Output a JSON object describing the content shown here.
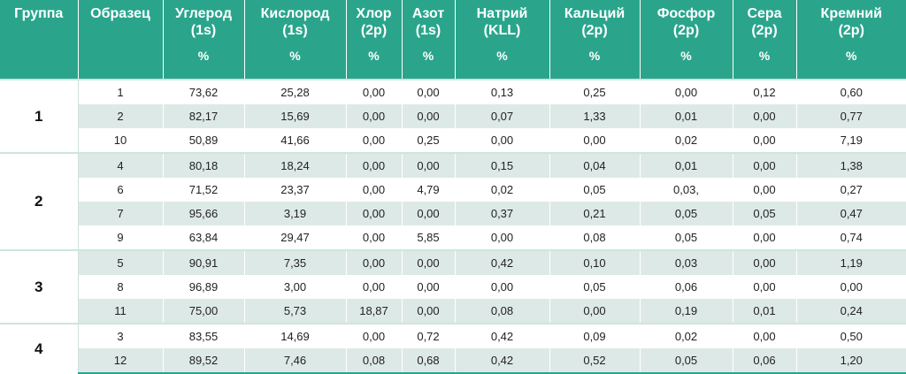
{
  "table": {
    "headers": [
      {
        "line1": "Группа",
        "line2": "",
        "unit": ""
      },
      {
        "line1": "Образец",
        "line2": "",
        "unit": ""
      },
      {
        "line1": "Углерод",
        "line2": "(1s)",
        "unit": "%"
      },
      {
        "line1": "Кислород",
        "line2": "(1s)",
        "unit": "%"
      },
      {
        "line1": "Хлор",
        "line2": "(2p)",
        "unit": "%"
      },
      {
        "line1": "Азот",
        "line2": "(1s)",
        "unit": "%"
      },
      {
        "line1": "Натрий",
        "line2": "(KLL)",
        "unit": "%"
      },
      {
        "line1": "Кальций",
        "line2": "(2p)",
        "unit": "%"
      },
      {
        "line1": "Фосфор",
        "line2": "(2p)",
        "unit": "%"
      },
      {
        "line1": "Сера",
        "line2": "(2p)",
        "unit": "%"
      },
      {
        "line1": "Кремний",
        "line2": "(2p)",
        "unit": "%"
      }
    ],
    "groups": [
      {
        "label": "1",
        "rows": [
          [
            "1",
            "73,62",
            "25,28",
            "0,00",
            "0,00",
            "0,13",
            "0,25",
            "0,00",
            "0,12",
            "0,60"
          ],
          [
            "2",
            "82,17",
            "15,69",
            "0,00",
            "0,00",
            "0,07",
            "1,33",
            "0,01",
            "0,00",
            "0,77"
          ],
          [
            "10",
            "50,89",
            "41,66",
            "0,00",
            "0,25",
            "0,00",
            "0,00",
            "0,02",
            "0,00",
            "7,19"
          ]
        ]
      },
      {
        "label": "2",
        "rows": [
          [
            "4",
            "80,18",
            "18,24",
            "0,00",
            "0,00",
            "0,15",
            "0,04",
            "0,01",
            "0,00",
            "1,38"
          ],
          [
            "6",
            "71,52",
            "23,37",
            "0,00",
            "4,79",
            "0,02",
            "0,05",
            "0,03,",
            "0,00",
            "0,27"
          ],
          [
            "7",
            "95,66",
            "3,19",
            "0,00",
            "0,00",
            "0,37",
            "0,21",
            "0,05",
            "0,05",
            "0,47"
          ],
          [
            "9",
            "63,84",
            "29,47",
            "0,00",
            "5,85",
            "0,00",
            "0,08",
            "0,05",
            "0,00",
            "0,74"
          ]
        ]
      },
      {
        "label": "3",
        "rows": [
          [
            "5",
            "90,91",
            "7,35",
            "0,00",
            "0,00",
            "0,42",
            "0,10",
            "0,03",
            "0,00",
            "1,19"
          ],
          [
            "8",
            "96,89",
            "3,00",
            "0,00",
            "0,00",
            "0,00",
            "0,05",
            "0,06",
            "0,00",
            "0,00"
          ],
          [
            "11",
            "75,00",
            "5,73",
            "18,87",
            "0,00",
            "0,08",
            "0,00",
            "0,19",
            "0,01",
            "0,24"
          ]
        ]
      },
      {
        "label": "4",
        "rows": [
          [
            "3",
            "83,55",
            "14,69",
            "0,00",
            "0,72",
            "0,42",
            "0,09",
            "0,02",
            "0,00",
            "0,50"
          ],
          [
            "12",
            "89,52",
            "7,46",
            "0,08",
            "0,68",
            "0,42",
            "0,52",
            "0,05",
            "0,06",
            "1,20"
          ]
        ]
      }
    ]
  }
}
